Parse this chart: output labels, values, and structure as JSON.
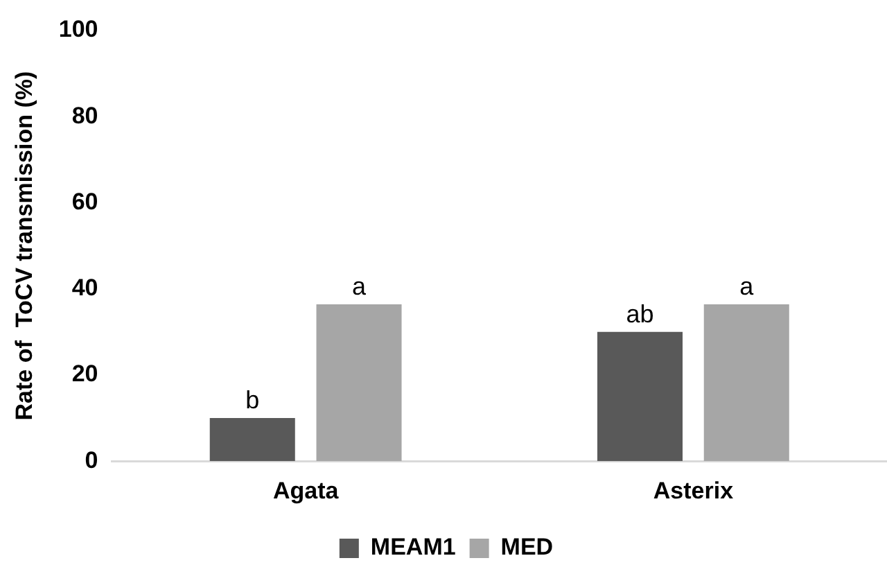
{
  "chart_data": {
    "type": "bar",
    "ylabel": "Rate of  ToCV transmission (%)",
    "categories": [
      "Agata",
      "Asterix"
    ],
    "series": [
      {
        "name": "MEAM1",
        "color": "#595959",
        "values": [
          10,
          30
        ],
        "value_labels": [
          "b",
          "ab"
        ]
      },
      {
        "name": "MED",
        "color": "#a6a6a6",
        "values": [
          36.4,
          36.4
        ],
        "value_labels": [
          "a",
          "a"
        ]
      }
    ],
    "ylim": [
      0,
      100
    ],
    "yticks": [
      0,
      20,
      40,
      60,
      80,
      100
    ],
    "grid": false,
    "legend": "bottom"
  }
}
